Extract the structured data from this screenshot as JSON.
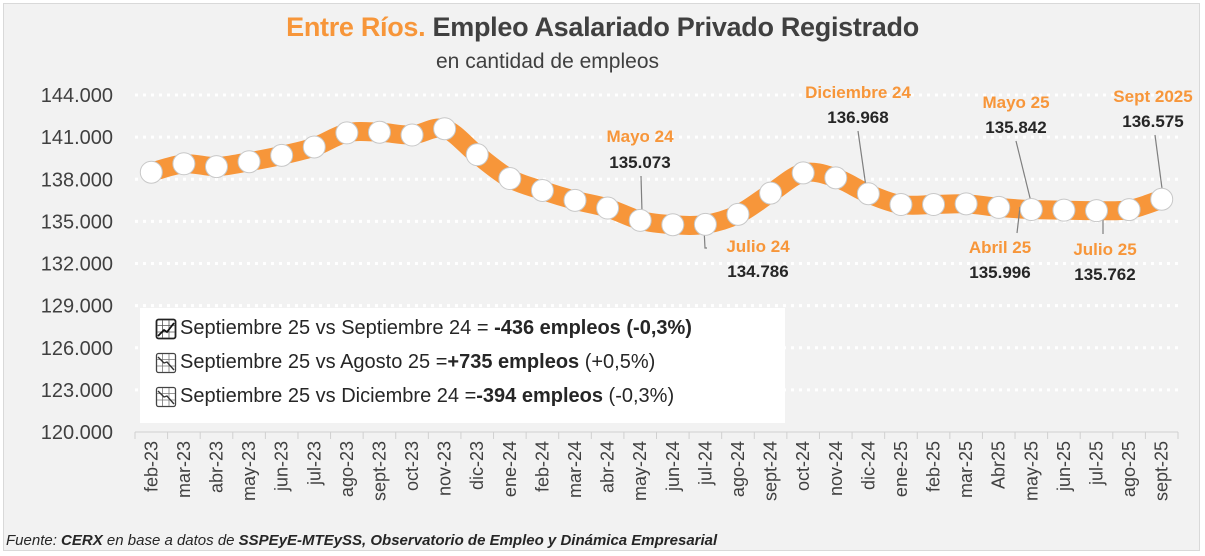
{
  "title": {
    "accent": "Entre Ríos.",
    "main": "Empleo Asalariado Privado Registrado"
  },
  "subtitle": "en cantidad de empleos",
  "legend": {
    "items": [
      {
        "icon": "chart-increasing-icon",
        "text": "Septiembre 25 vs Septiembre 24 = ",
        "bold": "-436 empleos",
        "bold_pct": "(-0,3%)"
      },
      {
        "icon": "chart-decreasing-icon",
        "text": "Septiembre 25  vs Agosto 25 = ",
        "bold": "+735 empleos",
        "bold_pct": "(+0,5%)"
      },
      {
        "icon": "chart-decreasing-icon",
        "text": "Septiembre 25 vs Diciembre 24 = ",
        "bold": "-394 empleos",
        "bold_pct": "(-0,3%)"
      }
    ]
  },
  "source": {
    "prefix": "Fuente: ",
    "org": "CERX",
    "mid": " en base a datos de ",
    "ref": "SSPEyE-MTEySS, Observatorio de Empleo y Dinámica Empresarial"
  },
  "chart_data": {
    "type": "line",
    "title": "Entre Ríos. Empleo Asalariado Privado Registrado",
    "subtitle": "en cantidad de empleos",
    "xlabel": "",
    "ylabel": "",
    "ylim": [
      120000,
      144000
    ],
    "yticks": [
      120000,
      123000,
      126000,
      129000,
      132000,
      135000,
      138000,
      141000,
      144000
    ],
    "ytick_labels": [
      "120.000",
      "123.000",
      "126.000",
      "129.000",
      "132.000",
      "135.000",
      "138.000",
      "141.000",
      "144.000"
    ],
    "grid": true,
    "color": "#f7963a",
    "categories": [
      "feb-23",
      "mar-23",
      "abr-23",
      "may-23",
      "jun-23",
      "jul-23",
      "ago-23",
      "sept-23",
      "oct-23",
      "nov-23",
      "dic-23",
      "ene-24",
      "feb-24",
      "mar-24",
      "abr-24",
      "may-24",
      "jun-24",
      "jul-24",
      "ago-24",
      "sept-24",
      "oct-24",
      "nov-24",
      "dic-24",
      "ene-25",
      "feb-25",
      "mar-25",
      "Abr25",
      "may-25",
      "jun-25",
      "jul-25",
      "ago-25",
      "sept-25"
    ],
    "values": [
      138500,
      139100,
      138900,
      139250,
      139700,
      140300,
      141300,
      141350,
      141150,
      141600,
      139750,
      138050,
      137200,
      136500,
      135950,
      135073,
      134760,
      134786,
      135500,
      137011,
      138450,
      138100,
      136968,
      136200,
      136200,
      136250,
      135996,
      135842,
      135800,
      135762,
      135840,
      136575
    ],
    "annotations": [
      {
        "index": 15,
        "name": "Mayo 24",
        "value": "135.073",
        "pos": "above"
      },
      {
        "index": 17,
        "name": "Julio 24",
        "value": "134.786",
        "pos": "below"
      },
      {
        "index": 22,
        "name": "Diciembre 24",
        "value": "136.968",
        "pos": "above"
      },
      {
        "index": 26,
        "name": "Abril 25",
        "value": "135.996",
        "pos": "below"
      },
      {
        "index": 27,
        "name": "Mayo 25",
        "value": "135.842",
        "pos": "above"
      },
      {
        "index": 29,
        "name": "Julio 25",
        "value": "135.762",
        "pos": "below"
      },
      {
        "index": 31,
        "name": "Sept 2025",
        "value": "136.575",
        "pos": "above"
      }
    ],
    "legend": "none"
  }
}
